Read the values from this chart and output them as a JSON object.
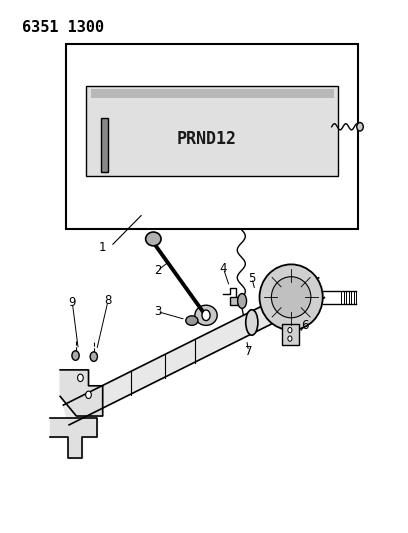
{
  "title_code": "6351 1300",
  "title_fontsize": 11,
  "bg_color": "#ffffff",
  "line_color": "#000000",
  "fig_width": 4.08,
  "fig_height": 5.33,
  "dpi": 100,
  "indicator_text": "PRND12"
}
